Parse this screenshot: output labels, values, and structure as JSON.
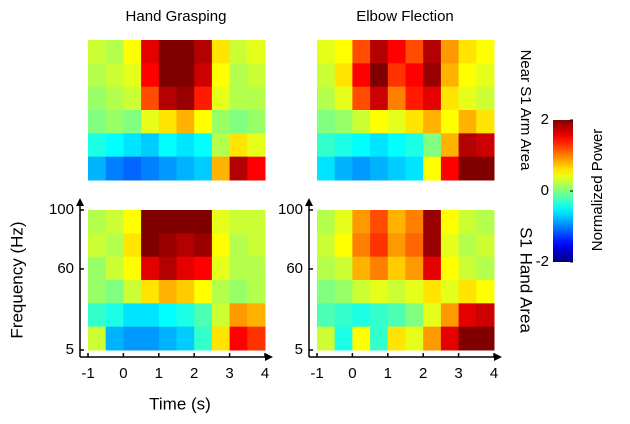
{
  "chart_data": {
    "type": "heatmap",
    "column_titles": [
      "Hand Grasping",
      "Elbow Flection"
    ],
    "row_labels": [
      "Near S1 Arm Area",
      "S1 Hand Area"
    ],
    "xlabel": "Time (s)",
    "ylabel": "Frequency (Hz)",
    "xlim": [
      -1,
      4
    ],
    "xticks": [
      -1,
      0,
      1,
      2,
      3,
      4
    ],
    "ylim": [
      5,
      100
    ],
    "yticks": [
      5,
      60,
      100
    ],
    "colormap": "jet",
    "clim": [
      -2,
      2
    ],
    "cticks": [
      -2,
      0,
      2
    ],
    "colorbar_label": "Normalized Power",
    "panels": [
      {
        "z": [
          [
            0.3,
            0.2,
            0.5,
            1.6,
            2,
            2,
            1.8,
            0.6,
            0.3,
            0.4
          ],
          [
            0.2,
            0.3,
            0.4,
            1.5,
            2,
            2,
            1.7,
            0.5,
            0.2,
            0.3
          ],
          [
            0.1,
            0.2,
            0.3,
            1.2,
            1.8,
            1.9,
            1.4,
            0.4,
            0.2,
            0.2
          ],
          [
            0,
            0.1,
            0,
            0.4,
            0.6,
            0.8,
            0.5,
            0.1,
            0,
            0.1
          ],
          [
            -0.4,
            -0.5,
            -0.6,
            -0.7,
            -0.5,
            -0.6,
            -0.5,
            0.2,
            0.6,
            0.4
          ],
          [
            -0.8,
            -1,
            -1.1,
            -1,
            -0.9,
            -0.8,
            -0.7,
            0.8,
            1.8,
            1.5
          ]
        ]
      },
      {
        "z": [
          [
            0.4,
            0.5,
            1.2,
            1.8,
            1.5,
            1.2,
            1.8,
            0.9,
            0.6,
            0.5
          ],
          [
            0.3,
            0.6,
            1.5,
            2,
            1.3,
            1.5,
            1.9,
            0.8,
            0.5,
            0.4
          ],
          [
            0.2,
            0.4,
            1.2,
            1.7,
            1,
            1.4,
            1.6,
            0.6,
            0.4,
            0.3
          ],
          [
            0,
            0.1,
            0.3,
            0.5,
            0.4,
            0.6,
            0.8,
            0.5,
            0.8,
            0.6
          ],
          [
            -0.3,
            -0.4,
            -0.5,
            -0.6,
            -0.5,
            -0.4,
            0,
            0.8,
            1.8,
            1.7
          ],
          [
            -0.6,
            -0.8,
            -0.9,
            -0.8,
            -0.7,
            -0.6,
            0.5,
            1.5,
            2,
            2
          ]
        ]
      },
      {
        "z": [
          [
            0.2,
            0.3,
            0.5,
            2,
            2,
            2,
            2,
            0.4,
            0.3,
            0.3
          ],
          [
            0.3,
            0.2,
            0.6,
            2,
            1.9,
            1.8,
            1.9,
            0.5,
            0.2,
            0.3
          ],
          [
            0.1,
            0.3,
            0.5,
            1.6,
            1.8,
            1.6,
            1.5,
            0.4,
            0.2,
            0.2
          ],
          [
            0.1,
            0,
            0.3,
            0.6,
            0.8,
            0.7,
            0.5,
            0.2,
            0.1,
            0.2
          ],
          [
            -0.3,
            -0.4,
            -0.6,
            -0.6,
            -0.5,
            -0.4,
            -0.2,
            0.3,
            0.9,
            0.8
          ],
          [
            0.3,
            -0.8,
            -0.9,
            -0.9,
            -0.8,
            -0.7,
            -0.3,
            0.6,
            1.5,
            1.3
          ]
        ]
      },
      {
        "z": [
          [
            0.2,
            0.4,
            0.9,
            1.2,
            0.8,
            1,
            1.9,
            0.5,
            0.3,
            0.2
          ],
          [
            0.3,
            0.5,
            1,
            1.3,
            0.9,
            1.1,
            1.9,
            0.4,
            0.2,
            0.3
          ],
          [
            0.2,
            0.3,
            0.8,
            1,
            0.7,
            0.9,
            1.6,
            0.5,
            0.3,
            0.2
          ],
          [
            0,
            0.1,
            0.3,
            0.4,
            0.3,
            0.4,
            0.6,
            0.4,
            0.6,
            0.5
          ],
          [
            -0.2,
            -0.3,
            -0.4,
            -0.3,
            -0.2,
            0,
            0.4,
            0.9,
            1.6,
            1.7
          ],
          [
            0.3,
            -0.4,
            0.5,
            -0.3,
            0.6,
            0.4,
            0.9,
            1.6,
            2,
            2
          ]
        ]
      }
    ]
  }
}
